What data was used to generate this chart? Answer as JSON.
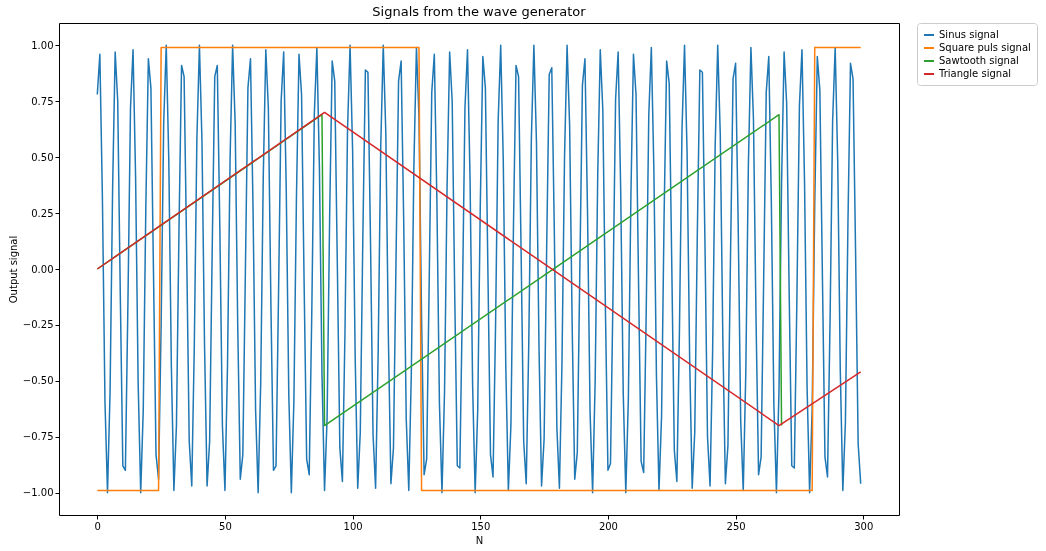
{
  "chart_data": {
    "type": "line",
    "title": "Signals from the wave generator",
    "xlabel": "N",
    "ylabel": "Output signal",
    "xlim": [
      -15,
      314
    ],
    "xticks": [
      0,
      50,
      100,
      150,
      200,
      250,
      300
    ],
    "ylim": [
      -1.1,
      1.1
    ],
    "yticks": [
      {
        "value": -1,
        "label": "−1.00"
      },
      {
        "value": -0.75,
        "label": "−0.75"
      },
      {
        "value": -0.5,
        "label": "−0.50"
      },
      {
        "value": -0.25,
        "label": "−0.25"
      },
      {
        "value": 0,
        "label": "0.00"
      },
      {
        "value": 0.25,
        "label": "0.25"
      },
      {
        "value": 0.5,
        "label": "0.50"
      },
      {
        "value": 0.75,
        "label": "0.75"
      },
      {
        "value": 1,
        "label": "1.00"
      }
    ],
    "legend": "right",
    "series": [
      {
        "name": "Sinus signal",
        "color": "#1f77b4",
        "x": [
          0,
          1,
          2,
          3,
          4,
          5,
          6,
          7,
          8,
          9,
          10,
          11,
          12,
          13,
          14,
          15,
          16,
          17,
          18,
          19,
          20,
          21,
          22,
          23,
          24,
          25,
          26,
          27,
          28,
          29,
          30,
          31,
          32,
          33,
          34,
          35,
          36,
          37,
          38,
          39,
          40,
          41,
          42,
          43,
          44,
          45,
          46,
          47,
          48,
          49,
          50,
          51,
          52,
          53,
          54,
          55,
          56,
          57,
          58,
          59,
          60,
          61,
          62,
          63,
          64,
          65,
          66,
          67,
          68,
          69,
          70,
          71,
          72,
          73,
          74,
          75,
          76,
          77,
          78,
          79,
          80,
          81,
          82,
          83,
          84,
          85,
          86,
          87,
          88,
          89,
          90,
          91,
          92,
          93,
          94,
          95,
          96,
          97,
          98,
          99,
          100,
          101,
          102,
          103,
          104,
          105,
          106,
          107,
          108,
          109,
          110,
          111,
          112,
          113,
          114,
          115,
          116,
          117,
          118,
          119,
          120,
          121,
          122,
          123,
          124,
          125,
          126,
          127,
          128,
          129,
          130,
          131,
          132,
          133,
          134,
          135,
          136,
          137,
          138,
          139,
          140,
          141,
          142,
          143,
          144,
          145,
          146,
          147,
          148,
          149,
          150,
          151,
          152,
          153,
          154,
          155,
          156,
          157,
          158,
          159,
          160,
          161,
          162,
          163,
          164,
          165,
          166,
          167,
          168,
          169,
          170,
          171,
          172,
          173,
          174,
          175,
          176,
          177,
          178,
          179,
          180,
          181,
          182,
          183,
          184,
          185,
          186,
          187,
          188,
          189,
          190,
          191,
          192,
          193,
          194,
          195,
          196,
          197,
          198,
          199,
          200,
          201,
          202,
          203,
          204,
          205,
          206,
          207,
          208,
          209,
          210,
          211,
          212,
          213,
          214,
          215,
          216,
          217,
          218,
          219,
          220,
          221,
          222,
          223,
          224,
          225,
          226,
          227,
          228,
          229,
          230,
          231,
          232,
          233,
          234,
          235,
          236,
          237,
          238,
          239,
          240,
          241,
          242,
          243,
          244,
          245,
          246,
          247,
          248,
          249,
          250,
          251,
          252,
          253,
          254,
          255,
          256,
          257,
          258,
          259,
          260,
          261,
          262,
          263,
          264,
          265,
          266,
          267,
          268,
          269,
          270,
          271,
          272,
          273,
          274,
          275,
          276,
          277,
          278,
          279,
          280,
          281,
          282,
          283,
          284,
          285,
          286,
          287,
          288,
          289,
          290,
          291,
          292,
          293,
          294,
          295,
          296,
          297,
          298,
          299
        ],
        "values": [
          0.78,
          0.96,
          0.32,
          -0.59,
          -1.0,
          -0.55,
          0.36,
          0.97,
          0.75,
          -0.11,
          -0.88,
          -0.9,
          -0.15,
          0.72,
          0.98,
          0.41,
          -0.51,
          -1.0,
          -0.63,
          0.27,
          0.94,
          0.81,
          -0.01,
          -0.83,
          -0.94,
          -0.25,
          0.65,
          1.0,
          0.49,
          -0.43,
          -0.99,
          -0.7,
          0.18,
          0.91,
          0.86,
          0.08,
          -0.77,
          -0.97,
          -0.34,
          0.58,
          1.0,
          0.57,
          -0.34,
          -0.97,
          -0.77,
          0.08,
          0.86,
          0.91,
          0.18,
          -0.7,
          -0.99,
          -0.43,
          0.49,
          1.0,
          0.65,
          -0.25,
          -0.94,
          -0.83,
          -0.01,
          0.81,
          0.94,
          0.27,
          -0.63,
          -1.0,
          -0.51,
          0.41,
          0.98,
          0.72,
          -0.16,
          -0.9,
          -0.88,
          -0.1,
          0.75,
          0.97,
          0.36,
          -0.56,
          -1.0,
          -0.59,
          0.32,
          0.96,
          0.78,
          -0.06,
          -0.85,
          -0.92,
          -0.2,
          0.69,
          0.99,
          0.45,
          -0.47,
          -0.99,
          -0.67,
          0.23,
          0.93,
          0.84,
          0.03,
          -0.8,
          -0.95,
          -0.29,
          0.62,
          1.0,
          0.53,
          -0.39,
          -0.98,
          -0.73,
          0.14,
          0.89,
          0.88,
          0.13,
          -0.74,
          -0.98,
          -0.38,
          0.54,
          1.0,
          0.61,
          -0.3,
          -0.96,
          -0.8,
          0.04,
          0.84,
          0.93,
          0.22,
          -0.67,
          -0.99,
          -0.46,
          0.46,
          0.99,
          0.68,
          -0.21,
          -0.92,
          -0.85,
          -0.05,
          0.79,
          0.96,
          0.31,
          -0.6,
          -1.0,
          -0.55,
          0.37,
          0.97,
          0.75,
          -0.12,
          -0.88,
          -0.89,
          -0.15,
          0.72,
          0.98,
          0.4,
          -0.52,
          -1.0,
          -0.63,
          0.28,
          0.95,
          0.81,
          -0.02,
          -0.83,
          -0.93,
          -0.24,
          0.66,
          1.0,
          0.49,
          -0.44,
          -0.99,
          -0.7,
          0.19,
          0.91,
          0.86,
          0.07,
          -0.77,
          -0.96,
          -0.33,
          0.58,
          1.0,
          0.57,
          -0.35,
          -0.97,
          -0.76,
          0.09,
          0.87,
          0.9,
          0.17,
          -0.71,
          -0.98,
          -0.42,
          0.5,
          1.0,
          0.64,
          -0.26,
          -0.94,
          -0.82,
          0.0,
          0.82,
          0.94,
          0.26,
          -0.64,
          -1.0,
          -0.5,
          0.42,
          0.98,
          0.71,
          -0.17,
          -0.9,
          -0.87,
          -0.1,
          0.76,
          0.97,
          0.35,
          -0.56,
          -1.0,
          -0.58,
          0.33,
          0.96,
          0.78,
          -0.07,
          -0.86,
          -0.91,
          -0.19,
          0.69,
          0.99,
          0.44,
          -0.48,
          -0.99,
          -0.66,
          0.24,
          0.93,
          0.83,
          0.02,
          -0.81,
          -0.95,
          -0.28,
          0.62,
          1.0,
          0.52,
          -0.4,
          -0.98,
          -0.73,
          0.15,
          0.89,
          0.88,
          0.12,
          -0.75,
          -0.97,
          -0.37,
          0.55,
          1.0,
          0.6,
          -0.31,
          -0.96,
          -0.79,
          0.05,
          0.85,
          0.92,
          0.21,
          -0.68,
          -0.99,
          -0.46,
          0.46,
          0.99,
          0.67,
          -0.22,
          -0.92,
          -0.84,
          -0.04,
          0.79,
          0.95,
          0.3,
          -0.61,
          -1.0,
          -0.54,
          0.38,
          0.97,
          0.74,
          -0.12,
          -0.88,
          -0.89,
          -0.14,
          0.73,
          0.98,
          0.39,
          -0.53,
          -1.0,
          -0.62,
          0.29,
          0.95,
          0.8,
          -0.03,
          -0.84,
          -0.93,
          -0.23,
          0.66,
          0.99,
          0.48,
          -0.45,
          -0.99,
          -0.69,
          0.2,
          0.92,
          0.85,
          0.07,
          -0.78,
          -0.96
        ]
      },
      {
        "name": "Square puls signal",
        "color": "#ff7f0e",
        "x": [
          0,
          24,
          25,
          126,
          127,
          280,
          281,
          299
        ],
        "values": [
          -0.99,
          -0.99,
          0.99,
          0.99,
          -0.99,
          -0.99,
          0.99,
          0.99
        ]
      },
      {
        "name": "Sawtooth signal",
        "color": "#2ca02c",
        "x": [
          0,
          88,
          89,
          267,
          268
        ],
        "values": [
          0.0,
          0.69,
          -0.7,
          0.69,
          -0.7
        ]
      },
      {
        "name": "Triangle signal",
        "color": "#d62728",
        "x": [
          0,
          89,
          267,
          299
        ],
        "values": [
          0.0,
          0.7,
          -0.7,
          -0.46
        ]
      }
    ]
  }
}
